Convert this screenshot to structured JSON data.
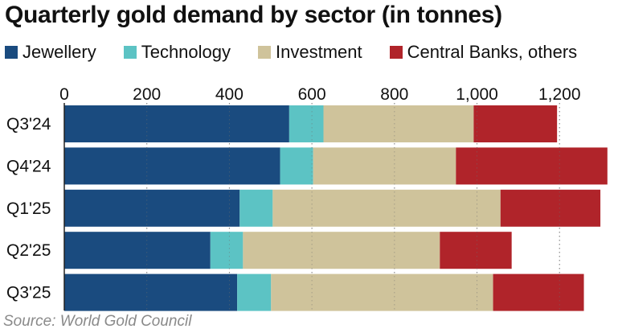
{
  "chart_data": {
    "type": "bar",
    "orientation": "horizontal",
    "stacked": true,
    "title": "Quarterly gold demand by sector (in tonnes)",
    "categories": [
      "Q3'24",
      "Q4'24",
      "Q1'25",
      "Q2'25",
      "Q3'25"
    ],
    "series": [
      {
        "name": "Jewellery",
        "color": "#1a4b7f",
        "values": [
          545,
          523,
          425,
          354,
          419
        ]
      },
      {
        "name": "Technology",
        "color": "#5cc3c4",
        "values": [
          83,
          80,
          80,
          79,
          82
        ]
      },
      {
        "name": "Investment",
        "color": "#cfc39b",
        "values": [
          364,
          346,
          552,
          477,
          538
        ]
      },
      {
        "name": "Central Banks, others",
        "color": "#b0242a",
        "values": [
          202,
          367,
          242,
          174,
          220
        ]
      }
    ],
    "xticks": [
      0,
      200,
      400,
      600,
      800,
      1000,
      1200
    ],
    "xtick_labels": [
      "0",
      "200",
      "400",
      "600",
      "800",
      "1,000",
      "1,200"
    ],
    "xlim": [
      0,
      1330
    ],
    "grid": "vertical dotted",
    "legend_position": "top",
    "xlabel": "",
    "ylabel": ""
  },
  "source": "Source: World Gold Council"
}
